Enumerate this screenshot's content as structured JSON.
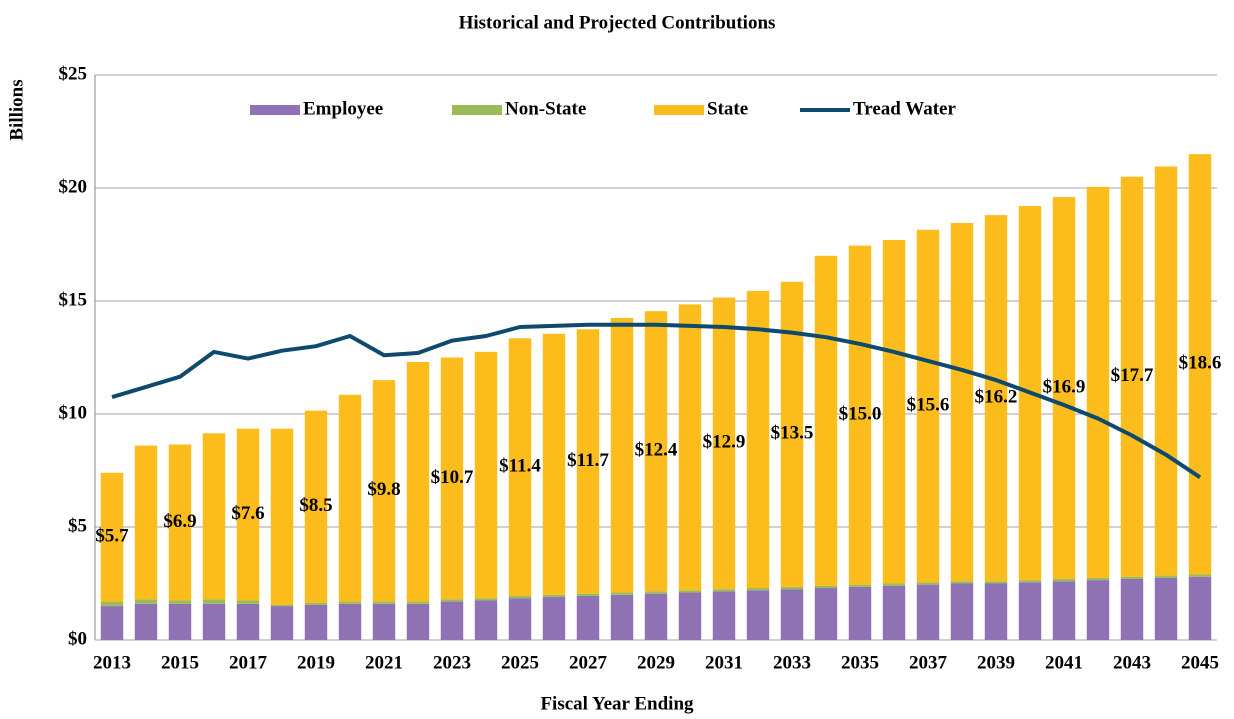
{
  "chart_data": {
    "type": "bar",
    "stacked": true,
    "title": "Historical and Projected Contributions",
    "xlabel": "Fiscal Year Ending",
    "ylabel": "Billions",
    "categories": [
      "2013",
      null,
      "2015",
      null,
      "2017",
      null,
      "2019",
      null,
      "2021",
      null,
      "2023",
      null,
      "2025",
      null,
      "2027",
      null,
      "2029",
      null,
      "2031",
      null,
      "2033",
      null,
      "2035",
      null,
      "2037",
      null,
      "2039",
      null,
      "2041",
      null,
      "2043",
      null,
      "2045"
    ],
    "ylim": [
      0,
      25
    ],
    "yticks": [
      {
        "value": 0,
        "label": "$0"
      },
      {
        "value": 5,
        "label": "$5"
      },
      {
        "value": 10,
        "label": "$10"
      },
      {
        "value": 15,
        "label": "$15"
      },
      {
        "value": 20,
        "label": "$20"
      },
      {
        "value": 25,
        "label": "$25"
      }
    ],
    "grid": true,
    "legend": "top",
    "series": [
      {
        "name": "Employee",
        "color": "#8e72b3",
        "values": [
          1.5,
          1.6,
          1.6,
          1.6,
          1.6,
          1.5,
          1.55,
          1.6,
          1.6,
          1.6,
          1.7,
          1.75,
          1.85,
          1.9,
          1.95,
          2.0,
          2.05,
          2.1,
          2.15,
          2.2,
          2.25,
          2.3,
          2.35,
          2.4,
          2.45,
          2.5,
          2.5,
          2.55,
          2.6,
          2.65,
          2.7,
          2.75,
          2.8
        ]
      },
      {
        "name": "Non-State",
        "color": "#9bbb59",
        "values": [
          0.2,
          0.2,
          0.15,
          0.2,
          0.15,
          0.05,
          0.1,
          0.1,
          0.1,
          0.1,
          0.1,
          0.1,
          0.1,
          0.1,
          0.1,
          0.1,
          0.1,
          0.1,
          0.1,
          0.1,
          0.1,
          0.1,
          0.1,
          0.1,
          0.1,
          0.1,
          0.1,
          0.1,
          0.1,
          0.1,
          0.1,
          0.1,
          0.1
        ]
      },
      {
        "name": "State",
        "color": "#fbbc1c",
        "values": [
          5.7,
          6.8,
          6.9,
          7.35,
          7.6,
          7.8,
          8.5,
          9.15,
          9.8,
          10.6,
          10.7,
          10.9,
          11.4,
          11.55,
          11.7,
          12.15,
          12.4,
          12.65,
          12.9,
          13.15,
          13.5,
          14.6,
          15.0,
          15.2,
          15.6,
          15.85,
          16.2,
          16.55,
          16.9,
          17.3,
          17.7,
          18.1,
          18.6
        ],
        "value_labels": [
          "$5.7",
          null,
          "$6.9",
          null,
          "$7.6",
          null,
          "$8.5",
          null,
          "$9.8",
          null,
          "$10.7",
          null,
          "$11.4",
          null,
          "$11.7",
          null,
          "$12.4",
          null,
          "$12.9",
          null,
          "$13.5",
          null,
          "$15.0",
          null,
          "$15.6",
          null,
          "$16.2",
          null,
          "$16.9",
          null,
          "$17.7",
          null,
          "$18.6"
        ]
      },
      {
        "name": "Tread Water",
        "type": "line",
        "color": "#0d4a6e",
        "values": [
          10.75,
          11.2,
          11.65,
          12.75,
          12.45,
          12.8,
          13.0,
          13.45,
          12.6,
          12.7,
          13.25,
          13.45,
          13.85,
          13.9,
          13.95,
          13.95,
          13.95,
          13.9,
          13.85,
          13.75,
          13.6,
          13.4,
          13.1,
          12.75,
          12.35,
          11.95,
          11.5,
          10.95,
          10.4,
          9.8,
          9.05,
          8.2,
          7.2
        ]
      }
    ]
  }
}
